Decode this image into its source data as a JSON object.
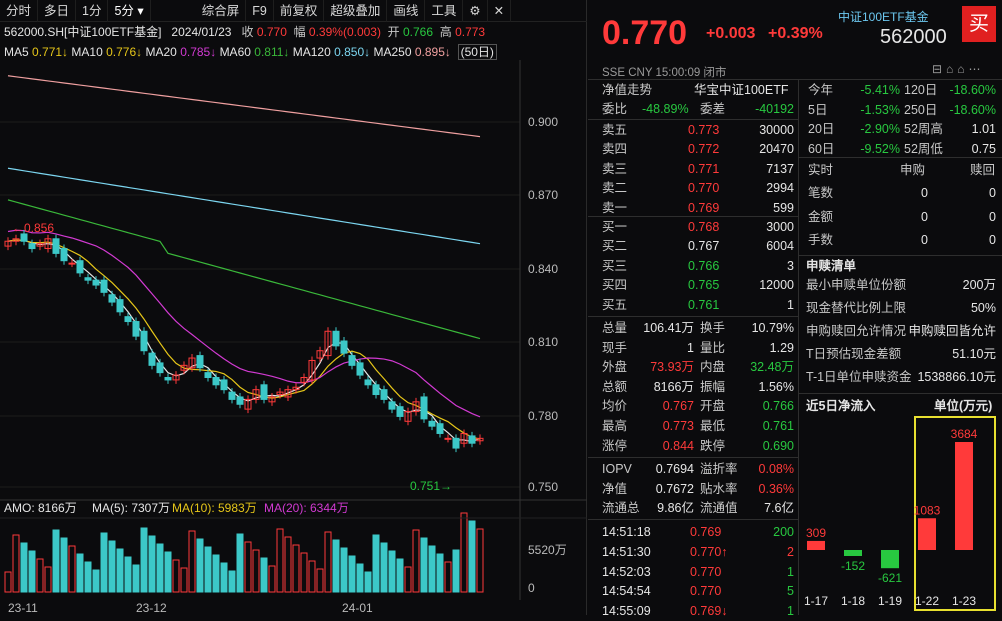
{
  "toolbar": {
    "items": [
      "分时",
      "多日",
      "1分",
      "5分",
      "综合屏",
      "F9",
      "前复权",
      "超级叠加",
      "画线",
      "工具"
    ]
  },
  "info": {
    "code": "562000.SH[中证100ETF基金]",
    "date": "2024/01/23",
    "close_label": "收",
    "close": "0.770",
    "amp_label": "幅",
    "amp": "0.39%(0.003)",
    "open_label": "开",
    "open": "0.766",
    "high_label": "高",
    "high": "0.773"
  },
  "ma": {
    "ma5": "MA5",
    "ma5v": "0.771↓",
    "ma10": "MA10",
    "ma10v": "0.776↓",
    "ma20": "MA20",
    "ma20v": "0.785↓",
    "ma60": "MA60",
    "ma60v": "0.811↓",
    "ma120": "MA120",
    "ma120v": "0.850↓",
    "ma250": "MA250",
    "ma250v": "0.895↓",
    "period": "(50日)"
  },
  "axis": {
    "y": [
      "0.900",
      "0.870",
      "0.840",
      "0.810",
      "0.780",
      "0.750"
    ],
    "vol": "5520万",
    "vol0": "0",
    "x": [
      "23-11",
      "23-12",
      "24-01"
    ],
    "hi_label": "←0.856",
    "lo_label": "0.751→"
  },
  "amo": {
    "amo": "AMO: 8166万",
    "ma5": "MA(5): 7307万",
    "ma10": "MA(10): 5983万",
    "ma20": "MA(20): 6344万"
  },
  "colors": {
    "up": "#ff3a3a",
    "down": "#3cc8c8",
    "ma5": "#e6e6e6",
    "ma10": "#e6c619",
    "ma20": "#d23ad2",
    "ma60": "#3ab83a",
    "ma120": "#7cd6f0",
    "ma250": "#f0a0a0"
  },
  "quote": {
    "price": "0.770",
    "chg": "+0.003",
    "pct": "+0.39%",
    "name": "中证100ETF基金",
    "code": "562000",
    "buy": "买",
    "exch": "SSE CNY 15:00:09 闭市"
  },
  "nav": {
    "label": "净值走势",
    "title": "华宝中证100ETF"
  },
  "ratio": {
    "wb_label": "委比",
    "wb": "-48.89%",
    "wc_label": "委差",
    "wc": "-40192"
  },
  "asks": [
    {
      "l": "卖五",
      "p": "0.773",
      "v": "30000"
    },
    {
      "l": "卖四",
      "p": "0.772",
      "v": "20470"
    },
    {
      "l": "卖三",
      "p": "0.771",
      "v": "7137"
    },
    {
      "l": "卖二",
      "p": "0.770",
      "v": "2994"
    },
    {
      "l": "卖一",
      "p": "0.769",
      "v": "599"
    }
  ],
  "bids": [
    {
      "l": "买一",
      "p": "0.768",
      "v": "3000"
    },
    {
      "l": "买二",
      "p": "0.767",
      "v": "6004"
    },
    {
      "l": "买三",
      "p": "0.766",
      "v": "3"
    },
    {
      "l": "买四",
      "p": "0.765",
      "v": "12000"
    },
    {
      "l": "买五",
      "p": "0.761",
      "v": "1"
    }
  ],
  "stats": [
    {
      "a": "总量",
      "b": "106.41万",
      "c": "换手",
      "d": "10.79%"
    },
    {
      "a": "现手",
      "b": "1",
      "c": "量比",
      "d": "1.29"
    },
    {
      "a": "外盘",
      "b": "73.93万",
      "c": "内盘",
      "d": "32.48万"
    },
    {
      "a": "总额",
      "b": "8166万",
      "c": "振幅",
      "d": "1.56%"
    },
    {
      "a": "均价",
      "b": "0.767",
      "c": "开盘",
      "d": "0.766"
    },
    {
      "a": "最高",
      "b": "0.773",
      "c": "最低",
      "d": "0.761"
    },
    {
      "a": "涨停",
      "b": "0.844",
      "c": "跌停",
      "d": "0.690"
    }
  ],
  "stats2": [
    {
      "a": "IOPV",
      "b": "0.7694",
      "c": "溢折率",
      "d": "0.08%"
    },
    {
      "a": "净值",
      "b": "0.7672",
      "c": "贴水率",
      "d": "0.36%"
    },
    {
      "a": "流通总",
      "b": "9.86亿",
      "c": "流通值",
      "d": "7.6亿"
    }
  ],
  "ticks": [
    {
      "t": "14:51:18",
      "p": "0.769",
      "v": "200",
      "a": ""
    },
    {
      "t": "14:51:30",
      "p": "0.770",
      "v": "2",
      "a": "↑"
    },
    {
      "t": "14:52:03",
      "p": "0.770",
      "v": "1",
      "a": ""
    },
    {
      "t": "14:54:54",
      "p": "0.770",
      "v": "5",
      "a": ""
    },
    {
      "t": "14:55:09",
      "p": "0.769",
      "v": "1",
      "a": "↓"
    }
  ],
  "perf": [
    {
      "a": "今年",
      "b": "-5.41%",
      "c": "120日",
      "d": "-18.60%"
    },
    {
      "a": "5日",
      "b": "-1.53%",
      "c": "250日",
      "d": "-18.60%"
    },
    {
      "a": "20日",
      "b": "-2.90%",
      "c": "52周高",
      "d": "1.01"
    },
    {
      "a": "60日",
      "b": "-9.52%",
      "c": "52周低",
      "d": "0.75"
    }
  ],
  "sub": {
    "h1": "实时",
    "h2": "申购",
    "h3": "赎回",
    "rows": [
      {
        "a": "笔数",
        "b": "0",
        "c": "0"
      },
      {
        "a": "金额",
        "b": "0",
        "c": "0"
      },
      {
        "a": "手数",
        "b": "0",
        "c": "0"
      }
    ]
  },
  "list": {
    "title": "申赎清单",
    "rows": [
      {
        "a": "最小申赎单位份额",
        "b": "200万"
      },
      {
        "a": "现金替代比例上限",
        "b": "50%"
      },
      {
        "a": "申购赎回允许情况",
        "b": "申购赎回皆允许"
      },
      {
        "a": "T日预估现金差额",
        "b": "51.10元"
      },
      {
        "a": "T-1日单位申赎资金",
        "b": "1538866.10元"
      }
    ]
  },
  "flow": {
    "title": "近5日净流入",
    "unit": "单位(万元)"
  },
  "chart_data": {
    "type": "bar",
    "title": "近5日净流入",
    "categories": [
      "1-17",
      "1-18",
      "1-19",
      "1-22",
      "1-23"
    ],
    "values": [
      309,
      -152,
      -621,
      1083,
      3684
    ]
  }
}
